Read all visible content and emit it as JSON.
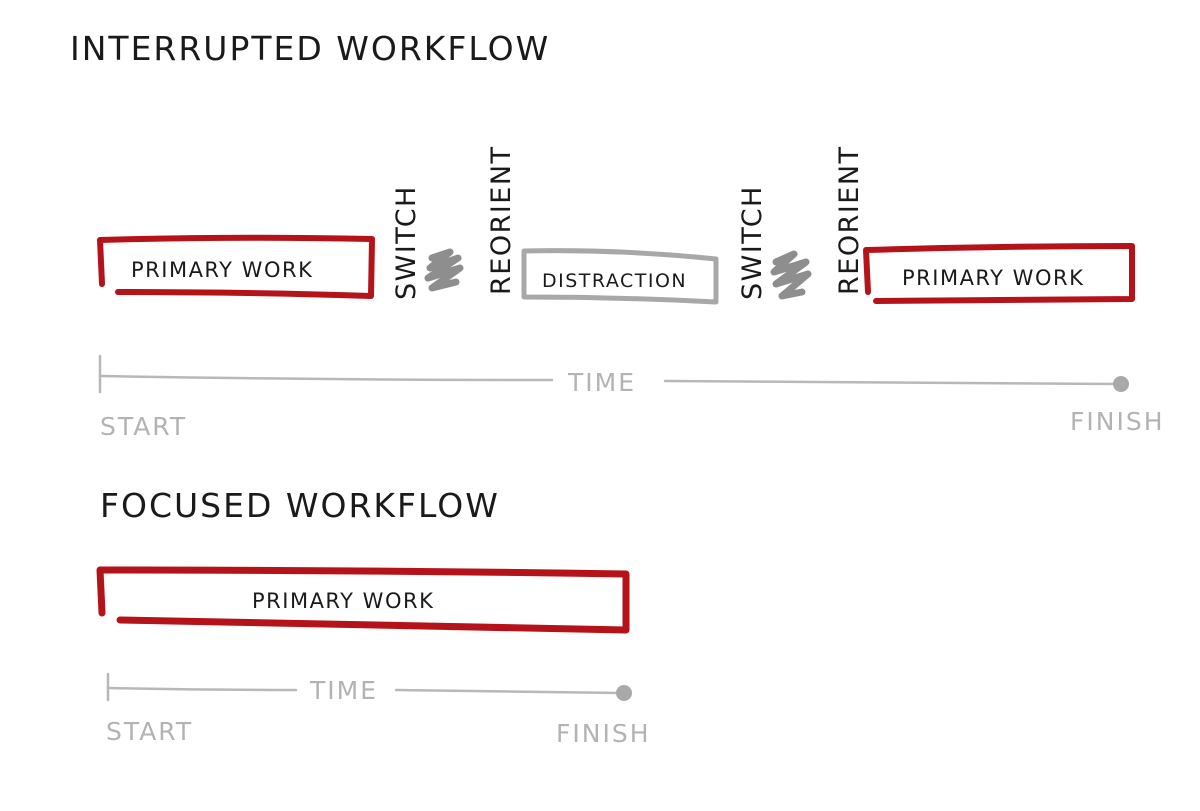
{
  "colors": {
    "work_box": "#b5131a",
    "distraction_box": "#a8a8a8",
    "switch_scribble": "#8e8e8e",
    "axis": "#b8b8b8",
    "ink": "#1a1a1a"
  },
  "interrupted": {
    "title": "INTERRUPTED WORKFLOW",
    "primary_work_1": "PRIMARY WORK",
    "switch_1": "SWITCH",
    "reorient_1": "REORIENT",
    "distraction": "DISTRACTION",
    "switch_2": "SWITCH",
    "reorient_2": "REORIENT",
    "primary_work_2": "PRIMARY WORK",
    "axis": {
      "label": "TIME",
      "start": "START",
      "finish": "FINISH"
    }
  },
  "focused": {
    "title": "FOCUSED WORKFLOW",
    "primary_work": "PRIMARY WORK",
    "axis": {
      "label": "TIME",
      "start": "START",
      "finish": "FINISH"
    }
  }
}
